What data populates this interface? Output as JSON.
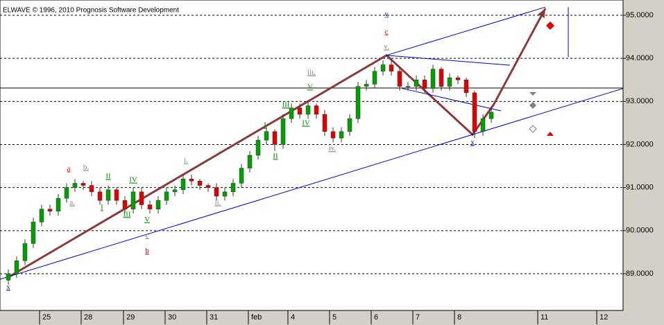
{
  "chart_data": {
    "type": "candlestick",
    "title": "ELWAVE © 1996, 2010 Prognosis Software Development",
    "up_color": "#00a000",
    "down_color": "#e00000",
    "grid": true,
    "xlim": [
      -1,
      73.83
    ],
    "ylim": [
      88.147,
      95.354
    ],
    "xticks": [
      {
        "value": 3.75,
        "label": "25"
      },
      {
        "value": 8.75,
        "label": "28"
      },
      {
        "value": 13.83,
        "label": "29"
      },
      {
        "value": 18.83,
        "label": "30"
      },
      {
        "value": 23.83,
        "label": "31"
      },
      {
        "value": 28.83,
        "label": "feb"
      },
      {
        "value": 33.58,
        "label": "4"
      },
      {
        "value": 38.58,
        "label": "5"
      },
      {
        "value": 43.58,
        "label": "6"
      },
      {
        "value": 48.58,
        "label": "7"
      },
      {
        "value": 53.58,
        "label": "8"
      },
      {
        "value": 63.58,
        "label": "11"
      },
      {
        "value": 70.67,
        "label": "12"
      }
    ],
    "yticks": [
      {
        "value": 89,
        "label": "89.0000"
      },
      {
        "value": 90,
        "label": "90.0000"
      },
      {
        "value": 91,
        "label": "91.0000"
      },
      {
        "value": 92,
        "label": "92.0000"
      },
      {
        "value": 93,
        "label": "93.0000"
      },
      {
        "value": 94,
        "label": "94.0000"
      },
      {
        "value": 95,
        "label": "95.0000"
      }
    ],
    "open": [
      88.85,
      89.0,
      89.3,
      89.7,
      90.2,
      90.5,
      90.45,
      90.75,
      91.0,
      91.1,
      91.05,
      90.9,
      90.7,
      90.95,
      90.7,
      90.5,
      90.9,
      90.6,
      90.5,
      90.7,
      90.9,
      90.95,
      91.2,
      91.15,
      91.05,
      91.0,
      90.8,
      90.9,
      91.1,
      91.45,
      91.75,
      92.1,
      92.3,
      92.0,
      92.6,
      92.85,
      92.7,
      92.9,
      92.7,
      92.3,
      92.15,
      92.3,
      92.6,
      93.35,
      93.4,
      93.7,
      93.85,
      93.7,
      93.35,
      93.35,
      93.5,
      93.3,
      93.75,
      93.35,
      93.55,
      93.5,
      93.2,
      92.3,
      92.6
    ],
    "high": [
      89.1,
      89.4,
      89.8,
      90.3,
      90.6,
      90.6,
      90.85,
      91.1,
      91.2,
      91.15,
      91.15,
      91.0,
      91.05,
      91.0,
      90.8,
      91.0,
      91.0,
      90.7,
      90.8,
      91.0,
      91.05,
      91.3,
      91.3,
      91.2,
      91.1,
      91.1,
      91.0,
      91.2,
      91.55,
      91.85,
      92.2,
      92.4,
      92.35,
      92.7,
      92.95,
      92.95,
      93.0,
      92.95,
      92.8,
      92.4,
      92.4,
      92.7,
      93.45,
      93.5,
      93.8,
      93.95,
      93.95,
      93.8,
      93.45,
      93.6,
      93.6,
      93.85,
      93.8,
      93.65,
      93.6,
      93.55,
      93.25,
      92.7,
      92.85
    ],
    "low": [
      88.75,
      88.9,
      89.2,
      89.6,
      90.1,
      90.35,
      90.35,
      90.65,
      90.9,
      90.95,
      90.8,
      90.6,
      90.6,
      90.6,
      90.4,
      90.4,
      90.5,
      90.4,
      90.4,
      90.6,
      90.8,
      90.85,
      91.05,
      90.95,
      90.9,
      90.7,
      90.7,
      90.8,
      91.0,
      91.35,
      91.65,
      92.0,
      91.85,
      91.9,
      92.5,
      92.6,
      92.6,
      92.6,
      92.2,
      92.05,
      92.05,
      92.2,
      92.5,
      93.25,
      93.3,
      93.6,
      93.6,
      93.25,
      93.25,
      93.25,
      93.2,
      93.2,
      93.25,
      93.25,
      93.4,
      93.1,
      92.15,
      92.2,
      92.5
    ],
    "close": [
      89.0,
      89.3,
      89.7,
      90.2,
      90.5,
      90.45,
      90.75,
      91.0,
      91.1,
      91.05,
      90.9,
      90.7,
      90.95,
      90.7,
      90.5,
      90.9,
      90.6,
      90.5,
      90.7,
      90.9,
      90.95,
      91.2,
      91.15,
      91.05,
      91.0,
      90.8,
      90.9,
      91.1,
      91.45,
      91.75,
      92.1,
      92.3,
      92.0,
      92.6,
      92.85,
      92.7,
      92.9,
      92.7,
      92.3,
      92.15,
      92.3,
      92.6,
      93.35,
      93.4,
      93.7,
      93.85,
      93.7,
      93.35,
      93.35,
      93.5,
      93.3,
      93.75,
      93.35,
      93.55,
      93.5,
      93.2,
      92.3,
      92.6,
      92.75
    ],
    "reference_line": 93.31,
    "trendlines": [
      {
        "color": "#8b3a3a",
        "x": [
          0,
          45.42,
          55.75,
          58.33,
          64.5
        ],
        "y": [
          88.92,
          94.07,
          92.23,
          92.94,
          95.16
        ]
      },
      {
        "color": "#0000cc",
        "x": [
          -1,
          73.83
        ],
        "y": [
          88.87,
          93.3
        ]
      },
      {
        "color": "#0000cc",
        "x": [
          45.42,
          64.5
        ],
        "y": [
          94.07,
          95.19
        ]
      },
      {
        "color": "#0000cc",
        "x": [
          45.42,
          60.25
        ],
        "y": [
          94.07,
          93.84
        ]
      },
      {
        "color": "#0000cc",
        "x": [
          47.33,
          59.17
        ],
        "y": [
          93.3,
          92.78
        ]
      },
      {
        "color": "#0000cc",
        "x": [
          67.25,
          67.25
        ],
        "y": [
          95.19,
          94.03
        ]
      }
    ],
    "wave_labels": [
      {
        "text": "x",
        "x": 0,
        "y": 88.68,
        "color": "#0000cc"
      },
      {
        "text": "a",
        "x": 7.25,
        "y": 91.43,
        "color": "#e00000"
      },
      {
        "text": "b.",
        "x": 9.33,
        "y": 91.46,
        "color": "#808080"
      },
      {
        "text": "a.",
        "x": 7.67,
        "y": 90.64,
        "color": "#808080"
      },
      {
        "text": "II",
        "x": 12,
        "y": 91.25,
        "color": "#009000"
      },
      {
        "text": "I",
        "x": 11.25,
        "y": 90.53,
        "color": "#009000"
      },
      {
        "text": "III",
        "x": 14.25,
        "y": 90.37,
        "color": "#009000"
      },
      {
        "text": "IV",
        "x": 15,
        "y": 91.17,
        "color": "#009000"
      },
      {
        "text": "V",
        "x": 16.67,
        "y": 90.25,
        "color": "#009000"
      },
      {
        "text": "c",
        "x": 16.67,
        "y": 89.88,
        "color": "#808080"
      },
      {
        "text": "b",
        "x": 16.67,
        "y": 89.52,
        "color": "#e00000"
      },
      {
        "text": "i.",
        "x": 21.33,
        "y": 91.62,
        "color": "#808080"
      },
      {
        "text": "ii.",
        "x": 25.17,
        "y": 90.64,
        "color": "#808080"
      },
      {
        "text": "I",
        "x": 30.83,
        "y": 92.44,
        "color": "#009000"
      },
      {
        "text": "II",
        "x": 32.08,
        "y": 91.72,
        "color": "#009000"
      },
      {
        "text": "III",
        "x": 33.33,
        "y": 92.91,
        "color": "#009000"
      },
      {
        "text": "IV",
        "x": 35.75,
        "y": 92.49,
        "color": "#009000"
      },
      {
        "text": "V",
        "x": 36.25,
        "y": 93.33,
        "color": "#009000"
      },
      {
        "text": "iii.",
        "x": 36.42,
        "y": 93.66,
        "color": "#808080"
      },
      {
        "text": "iv.",
        "x": 38.92,
        "y": 91.9,
        "color": "#808080"
      },
      {
        "text": "y",
        "x": 45.42,
        "y": 95.02,
        "color": "#0000cc"
      },
      {
        "text": "c",
        "x": 45.42,
        "y": 94.61,
        "color": "#e00000"
      },
      {
        "text": "v.",
        "x": 45.42,
        "y": 94.26,
        "color": "#808080"
      },
      {
        "text": "x",
        "x": 55.75,
        "y": 92.04,
        "color": "#0000cc"
      }
    ]
  }
}
